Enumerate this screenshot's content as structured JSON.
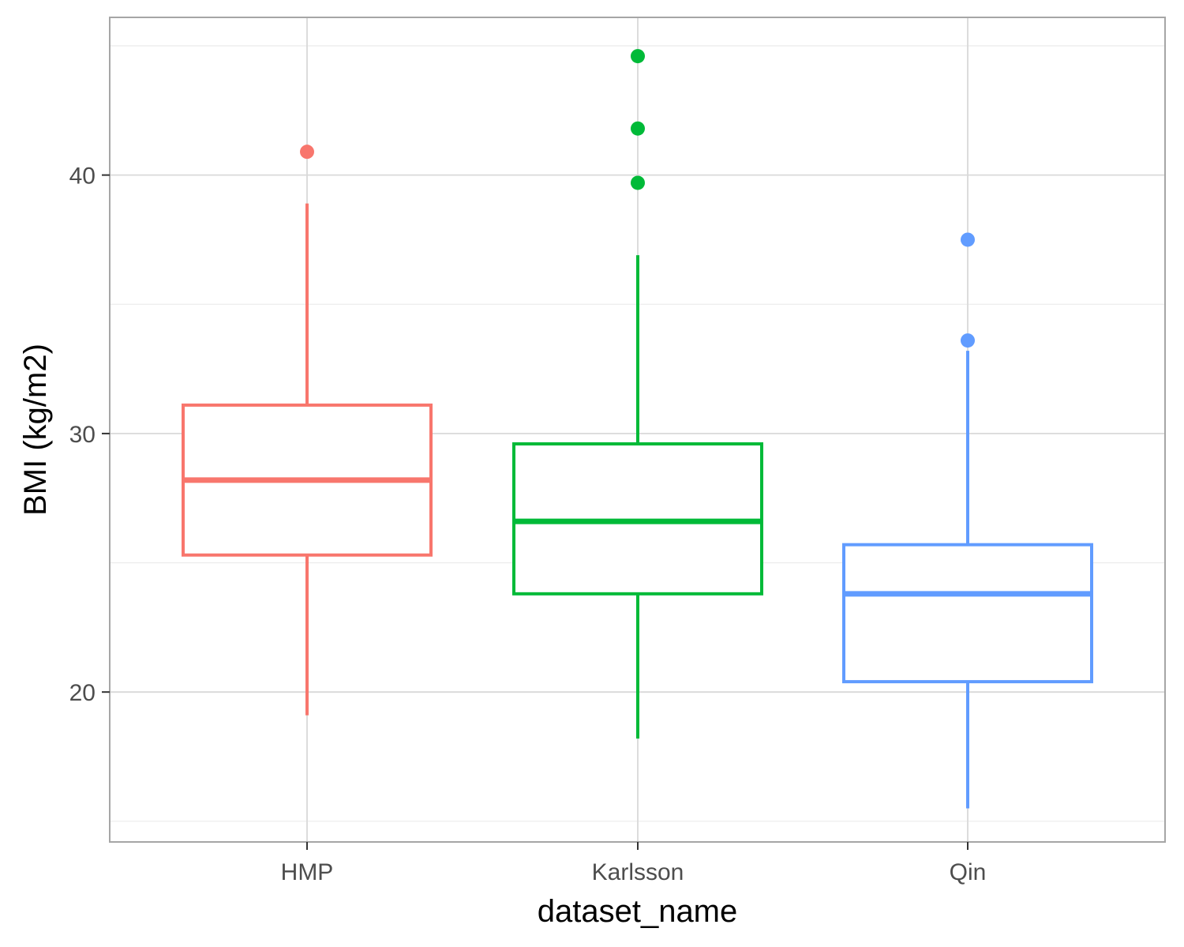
{
  "chart_data": {
    "type": "boxplot",
    "xlabel": "dataset_name",
    "ylabel": "BMI (kg/m2)",
    "ylim": [
      14.2,
      46.1
    ],
    "y_major_ticks": [
      20,
      30,
      40
    ],
    "y_minor_ticks": [
      15,
      25,
      35,
      45
    ],
    "grid": true,
    "legend": "none",
    "categories": [
      "HMP",
      "Karlsson",
      "Qin"
    ],
    "boxes": [
      {
        "category": "HMP",
        "color": "#F8766D",
        "lower_whisker": 19.1,
        "q1": 25.3,
        "median": 28.2,
        "q3": 31.1,
        "upper_whisker": 38.9,
        "outliers": [
          40.9
        ]
      },
      {
        "category": "Karlsson",
        "color": "#00BA38",
        "lower_whisker": 18.2,
        "q1": 23.8,
        "median": 26.6,
        "q3": 29.6,
        "upper_whisker": 36.9,
        "outliers": [
          39.7,
          41.8,
          44.6
        ]
      },
      {
        "category": "Qin",
        "color": "#619CFF",
        "lower_whisker": 15.5,
        "q1": 20.4,
        "median": 23.8,
        "q3": 25.7,
        "upper_whisker": 33.2,
        "outliers": [
          33.6,
          37.5
        ]
      }
    ]
  },
  "colors": {
    "panel_border": "#a6a6a6",
    "major_grid": "#d9d9d9",
    "minor_grid": "#ebebeb",
    "tick_text": "#4d4d4d",
    "title_text": "#000000"
  }
}
